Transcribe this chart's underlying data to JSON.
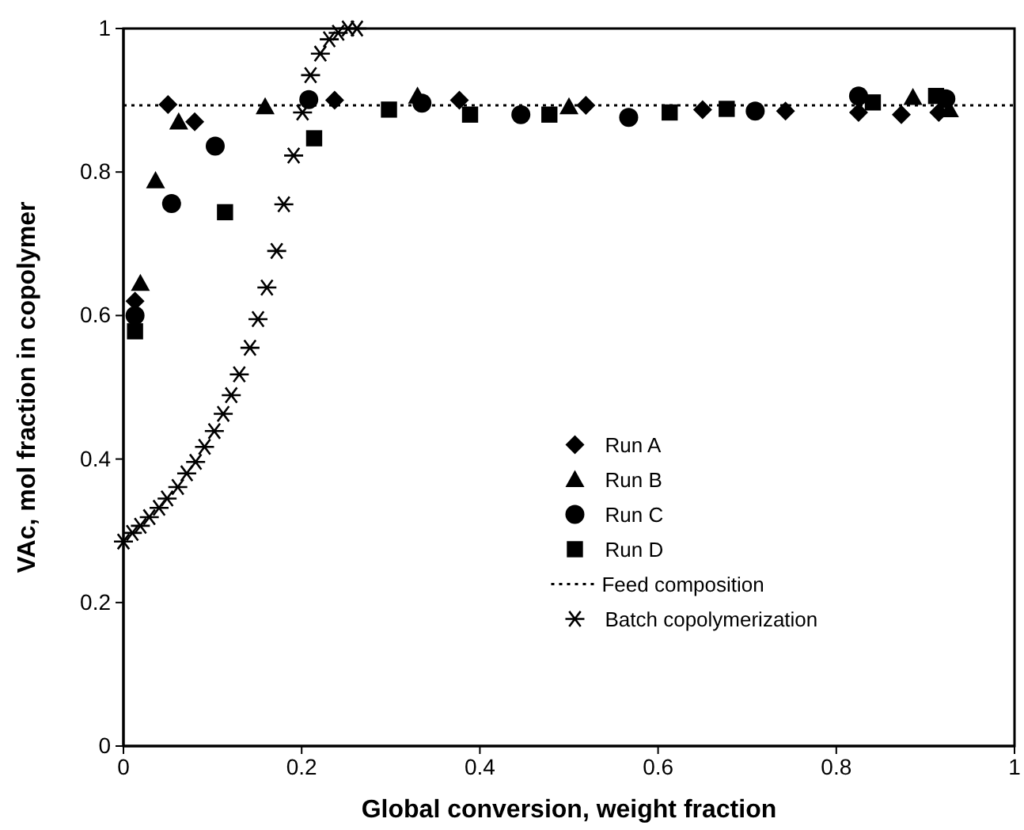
{
  "chart_data": {
    "type": "scatter",
    "xlabel": "Global conversion, weight fraction",
    "ylabel": "VAc, mol fraction in copolymer",
    "xlim": [
      0,
      1
    ],
    "ylim": [
      0,
      1
    ],
    "xticks": [
      0,
      0.2,
      0.4,
      0.6,
      0.8,
      1
    ],
    "yticks": [
      0,
      0.2,
      0.4,
      0.6,
      0.8,
      1
    ],
    "grid": false,
    "legend": "bottom right",
    "series": [
      {
        "name": "Run A",
        "color": "#000000",
        "marker": "diamond",
        "x": [
          0.013,
          0.05,
          0.08,
          0.237,
          0.377,
          0.519,
          0.65,
          0.743,
          0.825,
          0.873,
          0.915
        ],
        "values": [
          0.62,
          0.894,
          0.87,
          0.9,
          0.9,
          0.893,
          0.887,
          0.885,
          0.883,
          0.88,
          0.883
        ]
      },
      {
        "name": "Run B",
        "color": "#000000",
        "marker": "triangle",
        "x": [
          0.019,
          0.036,
          0.062,
          0.159,
          0.33,
          0.5,
          0.886,
          0.927
        ],
        "values": [
          0.645,
          0.788,
          0.87,
          0.891,
          0.906,
          0.891,
          0.904,
          0.887
        ]
      },
      {
        "name": "Run C",
        "color": "#000000",
        "marker": "circle",
        "x": [
          0.013,
          0.054,
          0.103,
          0.208,
          0.335,
          0.446,
          0.567,
          0.709,
          0.825,
          0.923
        ],
        "values": [
          0.6,
          0.756,
          0.836,
          0.901,
          0.896,
          0.88,
          0.876,
          0.885,
          0.906,
          0.902
        ]
      },
      {
        "name": "Run D",
        "color": "#000000",
        "marker": "square",
        "x": [
          0.013,
          0.114,
          0.214,
          0.298,
          0.389,
          0.478,
          0.613,
          0.677,
          0.841,
          0.912
        ],
        "values": [
          0.578,
          0.744,
          0.847,
          0.887,
          0.88,
          0.88,
          0.883,
          0.888,
          0.897,
          0.906
        ]
      },
      {
        "name": "Batch copolymerization",
        "color": "#000000",
        "marker": "cross",
        "x": [
          0,
          0.01,
          0.019,
          0.029,
          0.04,
          0.049,
          0.061,
          0.071,
          0.081,
          0.091,
          0.102,
          0.112,
          0.121,
          0.13,
          0.142,
          0.151,
          0.161,
          0.172,
          0.18,
          0.191,
          0.201,
          0.21,
          0.221,
          0.231,
          0.241,
          0.252,
          0.262
        ],
        "values": [
          0.285,
          0.297,
          0.307,
          0.319,
          0.332,
          0.345,
          0.361,
          0.38,
          0.396,
          0.417,
          0.439,
          0.463,
          0.489,
          0.518,
          0.555,
          0.595,
          0.639,
          0.69,
          0.755,
          0.823,
          0.883,
          0.935,
          0.965,
          0.985,
          0.994,
          1.0,
          1.0
        ]
      }
    ],
    "ref_lines": [
      {
        "axis": "y",
        "value": 0.893,
        "label": "Feed composition",
        "color": "#000000",
        "line_style": "dotted"
      }
    ]
  }
}
